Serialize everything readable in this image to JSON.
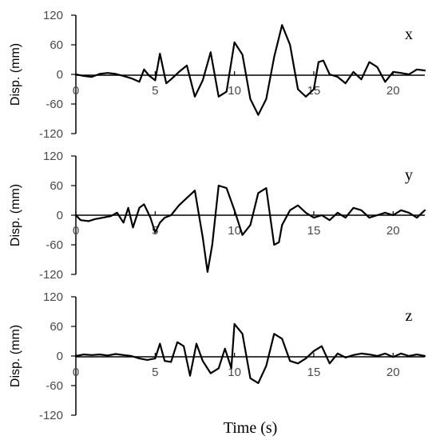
{
  "chart_data": {
    "type": "line",
    "xlabel": "Time (s)",
    "xlim": [
      0,
      22
    ],
    "x_ticks": [
      "0",
      "5",
      "10",
      "15",
      "20"
    ],
    "panels": [
      {
        "letter": "x",
        "ylabel": "Disp. (mm)",
        "ylim": [
          -120,
          120
        ],
        "y_ticks": [
          "120",
          "60",
          "0",
          "-60",
          "-120"
        ],
        "series": [
          {
            "points": [
              [
                0,
                0
              ],
              [
                0.5,
                -3
              ],
              [
                1,
                -5
              ],
              [
                1.5,
                1
              ],
              [
                2,
                3
              ],
              [
                2.5,
                1
              ],
              [
                3,
                -3
              ],
              [
                3.5,
                -8
              ],
              [
                4,
                -15
              ],
              [
                4.3,
                10
              ],
              [
                4.6,
                -2
              ],
              [
                5,
                -12
              ],
              [
                5.3,
                42
              ],
              [
                5.7,
                -18
              ],
              [
                6,
                -10
              ],
              [
                6.5,
                5
              ],
              [
                7,
                18
              ],
              [
                7.5,
                -45
              ],
              [
                8,
                -12
              ],
              [
                8.5,
                45
              ],
              [
                9,
                -45
              ],
              [
                9.5,
                -35
              ],
              [
                10,
                65
              ],
              [
                10.5,
                40
              ],
              [
                11,
                -50
              ],
              [
                11.5,
                -82
              ],
              [
                12,
                -50
              ],
              [
                12.5,
                35
              ],
              [
                13,
                100
              ],
              [
                13.5,
                60
              ],
              [
                14,
                -30
              ],
              [
                14.5,
                -45
              ],
              [
                15,
                -30
              ],
              [
                15.3,
                25
              ],
              [
                15.6,
                28
              ],
              [
                16,
                0
              ],
              [
                16.5,
                -5
              ],
              [
                17,
                -18
              ],
              [
                17.5,
                5
              ],
              [
                18,
                -10
              ],
              [
                18.5,
                25
              ],
              [
                19,
                15
              ],
              [
                19.5,
                -15
              ],
              [
                20,
                5
              ],
              [
                20.5,
                3
              ],
              [
                21,
                0
              ],
              [
                21.5,
                10
              ],
              [
                22,
                8
              ]
            ]
          }
        ]
      },
      {
        "letter": "y",
        "ylabel": "Disp. (mm)",
        "ylim": [
          -120,
          120
        ],
        "y_ticks": [
          "120",
          "60",
          "0",
          "-60",
          "-120"
        ],
        "series": [
          {
            "points": [
              [
                0,
                0
              ],
              [
                0.3,
                -10
              ],
              [
                0.8,
                -12
              ],
              [
                1.2,
                -8
              ],
              [
                1.7,
                -5
              ],
              [
                2.2,
                -2
              ],
              [
                2.6,
                5
              ],
              [
                3,
                -15
              ],
              [
                3.3,
                15
              ],
              [
                3.6,
                -25
              ],
              [
                4,
                15
              ],
              [
                4.3,
                22
              ],
              [
                4.7,
                -5
              ],
              [
                5,
                -35
              ],
              [
                5.3,
                -15
              ],
              [
                5.6,
                -5
              ],
              [
                6,
                0
              ],
              [
                6.5,
                20
              ],
              [
                7,
                35
              ],
              [
                7.5,
                50
              ],
              [
                8,
                -45
              ],
              [
                8.3,
                -115
              ],
              [
                8.6,
                -60
              ],
              [
                9,
                60
              ],
              [
                9.5,
                55
              ],
              [
                10,
                10
              ],
              [
                10.5,
                -40
              ],
              [
                11,
                -20
              ],
              [
                11.5,
                45
              ],
              [
                12,
                55
              ],
              [
                12.5,
                -60
              ],
              [
                12.8,
                -55
              ],
              [
                13,
                -20
              ],
              [
                13.5,
                10
              ],
              [
                14,
                20
              ],
              [
                14.5,
                5
              ],
              [
                15,
                -5
              ],
              [
                15.5,
                0
              ],
              [
                16,
                -10
              ],
              [
                16.5,
                5
              ],
              [
                17,
                -5
              ],
              [
                17.5,
                15
              ],
              [
                18,
                10
              ],
              [
                18.5,
                -5
              ],
              [
                19,
                0
              ],
              [
                19.5,
                5
              ],
              [
                20,
                0
              ],
              [
                20.5,
                10
              ],
              [
                21,
                5
              ],
              [
                21.5,
                -5
              ],
              [
                22,
                10
              ]
            ]
          }
        ]
      },
      {
        "letter": "z",
        "ylabel": "Disp. (mm)",
        "ylim": [
          -120,
          120
        ],
        "y_ticks": [
          "120",
          "60",
          "0",
          "-60",
          "-120"
        ],
        "series": [
          {
            "points": [
              [
                0,
                0
              ],
              [
                0.5,
                3
              ],
              [
                1,
                2
              ],
              [
                1.5,
                3
              ],
              [
                2,
                1
              ],
              [
                2.5,
                4
              ],
              [
                3,
                2
              ],
              [
                3.5,
                0
              ],
              [
                4,
                -5
              ],
              [
                4.5,
                -8
              ],
              [
                5,
                -5
              ],
              [
                5.3,
                25
              ],
              [
                5.6,
                -10
              ],
              [
                6,
                -12
              ],
              [
                6.4,
                28
              ],
              [
                6.8,
                20
              ],
              [
                7.2,
                -40
              ],
              [
                7.6,
                25
              ],
              [
                8,
                -10
              ],
              [
                8.5,
                -35
              ],
              [
                9,
                -25
              ],
              [
                9.4,
                15
              ],
              [
                9.8,
                -25
              ],
              [
                10,
                65
              ],
              [
                10.5,
                45
              ],
              [
                11,
                -45
              ],
              [
                11.5,
                -55
              ],
              [
                12,
                -20
              ],
              [
                12.5,
                45
              ],
              [
                13,
                35
              ],
              [
                13.5,
                -10
              ],
              [
                14,
                -15
              ],
              [
                14.5,
                -5
              ],
              [
                15,
                10
              ],
              [
                15.5,
                20
              ],
              [
                16,
                -15
              ],
              [
                16.5,
                5
              ],
              [
                17,
                -3
              ],
              [
                17.5,
                2
              ],
              [
                18,
                5
              ],
              [
                18.5,
                3
              ],
              [
                19,
                0
              ],
              [
                19.5,
                5
              ],
              [
                20,
                -2
              ],
              [
                20.5,
                5
              ],
              [
                21,
                0
              ],
              [
                21.5,
                3
              ],
              [
                22,
                0
              ]
            ]
          }
        ]
      }
    ]
  }
}
